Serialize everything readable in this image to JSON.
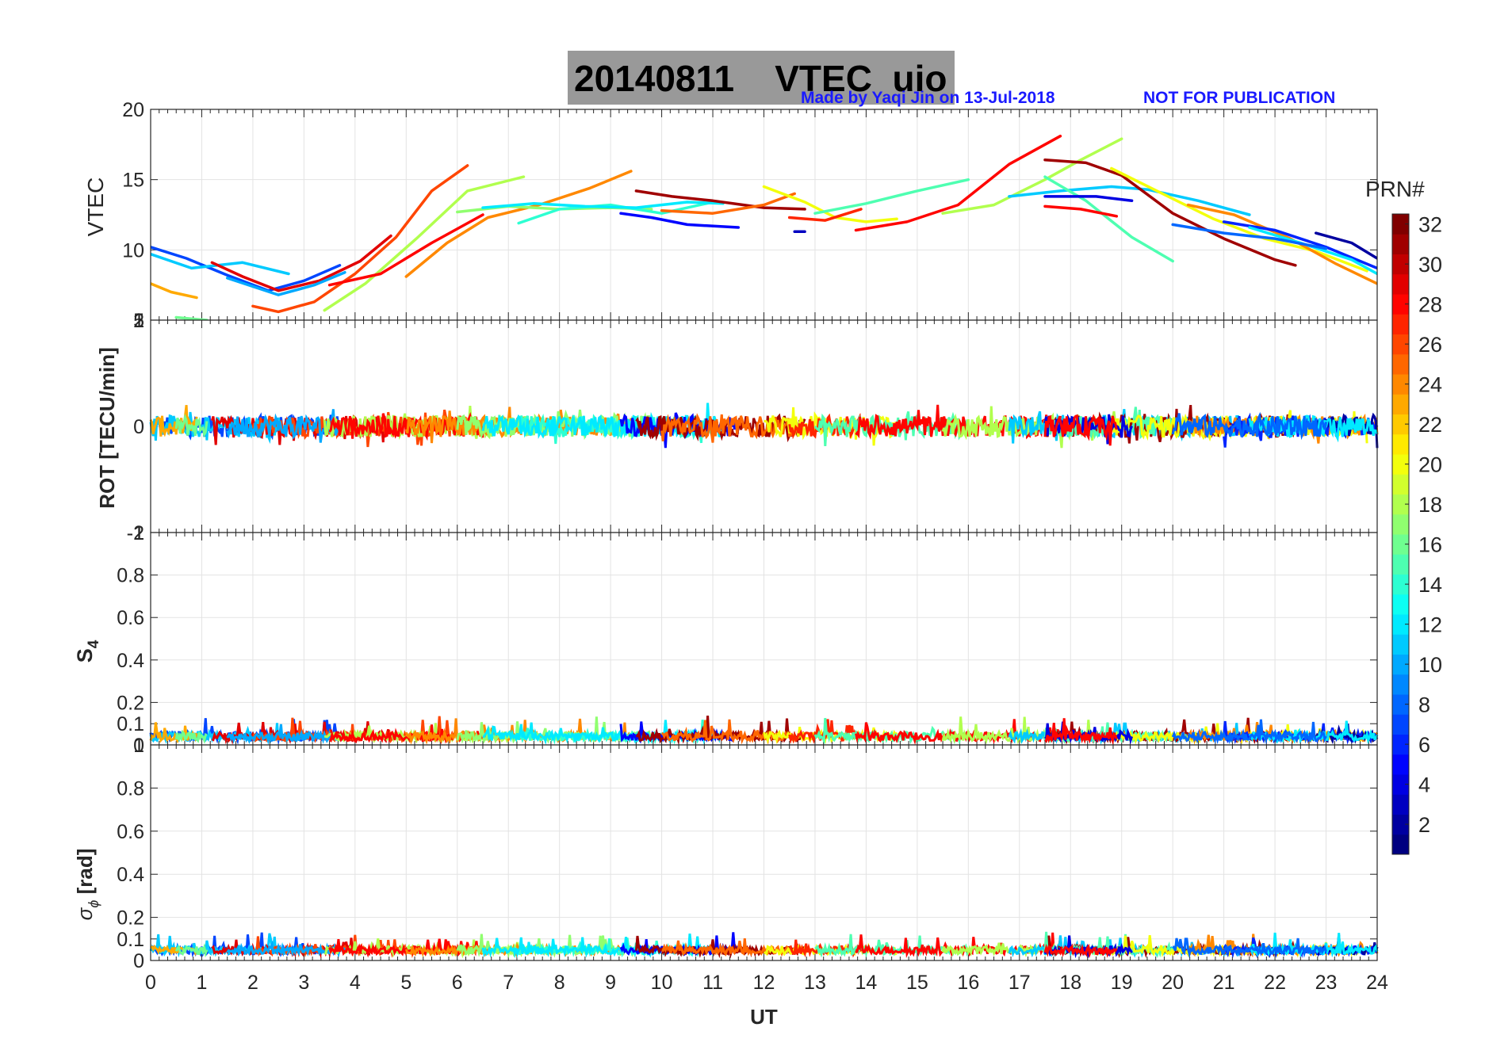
{
  "header": {
    "title": "20140811    VTEC  uio",
    "credit": "Made by Yaqi Jin on 13-Jul-2018",
    "notice": "NOT FOR PUBLICATION"
  },
  "colorbar": {
    "label": "PRN#",
    "ticks": [
      "2",
      "4",
      "6",
      "8",
      "10",
      "12",
      "14",
      "16",
      "18",
      "20",
      "22",
      "24",
      "26",
      "28",
      "30",
      "32"
    ],
    "min": 1,
    "max": 32
  },
  "chart_data": [
    {
      "type": "line",
      "panel": "vtec",
      "ylabel": "VTEC",
      "ylim": [
        5,
        20
      ],
      "yticks": [
        "5",
        "10",
        "15",
        "20"
      ],
      "xlim": [
        0,
        24
      ],
      "series": [
        {
          "prn": 7,
          "x": [
            0.0,
            0.7,
            1.5,
            2.3,
            3.0,
            3.7
          ],
          "y": [
            10.2,
            9.4,
            8.2,
            7.1,
            7.8,
            8.9
          ]
        },
        {
          "prn": 11,
          "x": [
            0.0,
            0.8,
            1.8,
            2.7
          ],
          "y": [
            9.7,
            8.7,
            9.1,
            8.3
          ]
        },
        {
          "prn": 23,
          "x": [
            0.0,
            0.4,
            0.9
          ],
          "y": [
            7.6,
            7.0,
            6.6
          ]
        },
        {
          "prn": 16,
          "x": [
            0.5,
            1.1
          ],
          "y": [
            5.2,
            5.0
          ]
        },
        {
          "prn": 29,
          "x": [
            1.2,
            1.8,
            2.5,
            3.3,
            4.1,
            4.7
          ],
          "y": [
            9.1,
            8.1,
            7.1,
            7.8,
            9.2,
            11.0
          ]
        },
        {
          "prn": 26,
          "x": [
            2.0,
            2.5,
            3.2,
            4.0,
            4.8,
            5.5,
            6.2
          ],
          "y": [
            6.0,
            5.6,
            6.3,
            8.3,
            10.9,
            14.2,
            16.0
          ]
        },
        {
          "prn": 10,
          "x": [
            1.5,
            2.5,
            3.2,
            3.8
          ],
          "y": [
            8.0,
            6.8,
            7.5,
            8.4
          ]
        },
        {
          "prn": 18,
          "x": [
            3.4,
            4.2,
            5.2,
            6.2,
            7.3
          ],
          "y": [
            5.7,
            7.6,
            10.8,
            14.2,
            15.2
          ]
        },
        {
          "prn": 28,
          "x": [
            3.5,
            4.5,
            5.5,
            6.5
          ],
          "y": [
            7.5,
            8.3,
            10.5,
            12.5
          ]
        },
        {
          "prn": 24,
          "x": [
            5.0,
            5.8,
            6.6,
            7.6,
            8.6,
            9.4
          ],
          "y": [
            8.1,
            10.5,
            12.3,
            13.2,
            14.4,
            15.6
          ]
        },
        {
          "prn": 17,
          "x": [
            6.0,
            7.0,
            8.0,
            9.0,
            9.8
          ],
          "y": [
            12.7,
            13.1,
            12.9,
            13.0,
            12.9
          ]
        },
        {
          "prn": 14,
          "x": [
            7.2,
            8.0,
            9.0,
            10.0,
            11.0
          ],
          "y": [
            11.9,
            12.9,
            13.2,
            12.6,
            13.4
          ]
        },
        {
          "prn": 12,
          "x": [
            6.5,
            7.5,
            8.5,
            9.5,
            10.5,
            11.2
          ],
          "y": [
            13.0,
            13.3,
            13.1,
            13.0,
            13.4,
            13.3
          ]
        },
        {
          "prn": 5,
          "x": [
            9.2,
            9.8,
            10.5,
            11.5
          ],
          "y": [
            12.6,
            12.3,
            11.8,
            11.6
          ]
        },
        {
          "prn": 31,
          "x": [
            9.5,
            10.2,
            11.0,
            12.0,
            12.8
          ],
          "y": [
            14.2,
            13.8,
            13.5,
            13.0,
            12.9
          ]
        },
        {
          "prn": 25,
          "x": [
            10.0,
            11.0,
            12.0,
            12.6
          ],
          "y": [
            12.8,
            12.6,
            13.2,
            14.0
          ]
        },
        {
          "prn": 20,
          "x": [
            12.0,
            12.8,
            13.4,
            14.0,
            14.6
          ],
          "y": [
            14.5,
            13.4,
            12.3,
            12.0,
            12.2
          ]
        },
        {
          "prn": 27,
          "x": [
            12.5,
            13.2,
            13.9
          ],
          "y": [
            12.3,
            12.1,
            12.9
          ]
        },
        {
          "prn": 15,
          "x": [
            13.0,
            14.0,
            15.0,
            16.0
          ],
          "y": [
            12.6,
            13.3,
            14.2,
            15.0
          ]
        },
        {
          "prn": 28,
          "x": [
            13.8,
            14.8,
            15.8,
            16.8,
            17.8
          ],
          "y": [
            11.4,
            12.0,
            13.2,
            16.1,
            18.1
          ]
        },
        {
          "prn": 18,
          "x": [
            15.5,
            16.5,
            17.5,
            18.2,
            19.0
          ],
          "y": [
            12.6,
            13.2,
            15.0,
            16.4,
            17.9
          ]
        },
        {
          "prn": 11,
          "x": [
            16.8,
            17.8,
            18.8,
            19.5,
            20.5,
            21.5
          ],
          "y": [
            13.8,
            14.2,
            14.5,
            14.3,
            13.5,
            12.5
          ]
        },
        {
          "prn": 31,
          "x": [
            17.5,
            18.3,
            19.0,
            20.0,
            21.0,
            22.0,
            22.4
          ],
          "y": [
            16.4,
            16.2,
            15.3,
            12.6,
            10.8,
            9.3,
            8.9
          ]
        },
        {
          "prn": 15,
          "x": [
            17.5,
            18.3,
            19.2,
            20.0
          ],
          "y": [
            15.2,
            13.5,
            10.9,
            9.2
          ]
        },
        {
          "prn": 20,
          "x": [
            18.8,
            19.8,
            20.8,
            21.8,
            22.8,
            23.8
          ],
          "y": [
            15.8,
            14.0,
            12.2,
            10.8,
            9.9,
            8.5
          ]
        },
        {
          "prn": 24,
          "x": [
            20.3,
            21.2,
            22.3,
            23.2,
            24.0
          ],
          "y": [
            13.2,
            12.5,
            10.8,
            9.0,
            7.6
          ]
        },
        {
          "prn": 6,
          "x": [
            21.0,
            22.0,
            23.0,
            24.0
          ],
          "y": [
            12.0,
            11.4,
            10.2,
            8.7
          ]
        },
        {
          "prn": 2,
          "x": [
            22.8,
            23.5,
            24.0
          ],
          "y": [
            11.2,
            10.5,
            9.4
          ]
        },
        {
          "prn": 12,
          "x": [
            21.5,
            22.5,
            23.5,
            24.0
          ],
          "y": [
            11.6,
            10.5,
            9.3,
            8.3
          ]
        },
        {
          "prn": 4,
          "x": [
            17.5,
            18.5,
            19.2
          ],
          "y": [
            13.8,
            13.8,
            13.5
          ]
        },
        {
          "prn": 28,
          "x": [
            17.5,
            18.2,
            18.9
          ],
          "y": [
            13.1,
            12.9,
            12.4
          ]
        },
        {
          "prn": 3,
          "x": [
            12.6,
            12.8
          ],
          "y": [
            11.3,
            11.3
          ]
        },
        {
          "prn": 8,
          "x": [
            20.0,
            21.0,
            22.0,
            23.0
          ],
          "y": [
            11.8,
            11.2,
            10.8,
            10.1
          ]
        }
      ]
    },
    {
      "type": "line",
      "panel": "rot",
      "ylabel": "ROT [TECU/min]",
      "ylim": [
        -1,
        1
      ],
      "yticks": [
        "-1",
        "0",
        "1"
      ],
      "overlap_ticks": [
        "-2",
        "2"
      ],
      "xlim": [
        0,
        24
      ],
      "description": "Noisy ROT values between about -0.25 and 0.25 TECU/min for all PRNs"
    },
    {
      "type": "line",
      "panel": "s4",
      "ylabel": "S",
      "ylabel_sub": "4",
      "ylim": [
        0,
        1
      ],
      "yticks": [
        "0",
        "0.1",
        "0.2",
        "0.4",
        "0.6",
        "0.8",
        "1"
      ],
      "xlim": [
        0,
        24
      ],
      "description": "Low S4 index, mostly 0.02-0.08 with peaks near 0.12"
    },
    {
      "type": "line",
      "panel": "sigma_phi",
      "ylabel": "σ",
      "ylabel_sub": "ϕ",
      "ylabel_unit": "[rad]",
      "ylim": [
        0,
        1
      ],
      "yticks": [
        "0",
        "0.1",
        "0.2",
        "0.4",
        "0.6",
        "0.8",
        "1"
      ],
      "xlim": [
        0,
        24
      ],
      "xlabel": "UT",
      "xticks": [
        "0",
        "1",
        "2",
        "3",
        "4",
        "5",
        "6",
        "7",
        "8",
        "9",
        "10",
        "11",
        "12",
        "13",
        "14",
        "15",
        "16",
        "17",
        "18",
        "19",
        "20",
        "21",
        "22",
        "23",
        "24"
      ],
      "description": "Low phase scintillation, mostly 0.03-0.08 rad with peaks near 0.12"
    }
  ]
}
